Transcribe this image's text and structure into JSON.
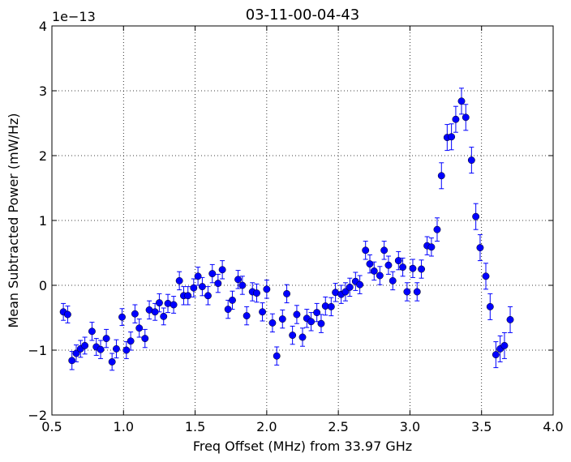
{
  "chart_data": {
    "type": "scatter",
    "title": "03-11-00-04-43",
    "xlabel": "Freq Offset (MHz) from 33.97 GHz",
    "ylabel": "Mean Subtracted Power (mW/Hz)",
    "y_offset_label": "1e−13",
    "xlim": [
      0.5,
      4.0
    ],
    "ylim": [
      -2,
      4
    ],
    "x_ticks": [
      "0.5",
      "1.0",
      "1.5",
      "2.0",
      "2.5",
      "3.0",
      "3.5",
      "4.0"
    ],
    "y_ticks": [
      "−2",
      "−1",
      "0",
      "1",
      "2",
      "3",
      "4"
    ],
    "grid": true,
    "marker_color": "#0000ff",
    "error_bar_color": "#0000ff",
    "points": [
      {
        "x": 0.58,
        "y": -0.41,
        "err": 0.13
      },
      {
        "x": 0.61,
        "y": -0.45,
        "err": 0.13
      },
      {
        "x": 0.64,
        "y": -1.16,
        "err": 0.14
      },
      {
        "x": 0.67,
        "y": -1.05,
        "err": 0.13
      },
      {
        "x": 0.7,
        "y": -0.98,
        "err": 0.13
      },
      {
        "x": 0.73,
        "y": -0.93,
        "err": 0.13
      },
      {
        "x": 0.78,
        "y": -0.71,
        "err": 0.14
      },
      {
        "x": 0.81,
        "y": -0.95,
        "err": 0.13
      },
      {
        "x": 0.84,
        "y": -0.99,
        "err": 0.14
      },
      {
        "x": 0.88,
        "y": -0.82,
        "err": 0.14
      },
      {
        "x": 0.92,
        "y": -1.18,
        "err": 0.13
      },
      {
        "x": 0.95,
        "y": -0.98,
        "err": 0.14
      },
      {
        "x": 0.99,
        "y": -0.49,
        "err": 0.13
      },
      {
        "x": 1.02,
        "y": -1.0,
        "err": 0.13
      },
      {
        "x": 1.05,
        "y": -0.86,
        "err": 0.14
      },
      {
        "x": 1.08,
        "y": -0.44,
        "err": 0.14
      },
      {
        "x": 1.11,
        "y": -0.66,
        "err": 0.14
      },
      {
        "x": 1.15,
        "y": -0.82,
        "err": 0.14
      },
      {
        "x": 1.18,
        "y": -0.38,
        "err": 0.14
      },
      {
        "x": 1.22,
        "y": -0.41,
        "err": 0.13
      },
      {
        "x": 1.25,
        "y": -0.27,
        "err": 0.14
      },
      {
        "x": 1.28,
        "y": -0.48,
        "err": 0.13
      },
      {
        "x": 1.31,
        "y": -0.28,
        "err": 0.14
      },
      {
        "x": 1.35,
        "y": -0.3,
        "err": 0.13
      },
      {
        "x": 1.39,
        "y": 0.07,
        "err": 0.14
      },
      {
        "x": 1.42,
        "y": -0.16,
        "err": 0.14
      },
      {
        "x": 1.45,
        "y": -0.16,
        "err": 0.14
      },
      {
        "x": 1.49,
        "y": -0.04,
        "err": 0.14
      },
      {
        "x": 1.52,
        "y": 0.14,
        "err": 0.14
      },
      {
        "x": 1.55,
        "y": -0.02,
        "err": 0.14
      },
      {
        "x": 1.59,
        "y": -0.16,
        "err": 0.14
      },
      {
        "x": 1.62,
        "y": 0.18,
        "err": 0.14
      },
      {
        "x": 1.66,
        "y": 0.03,
        "err": 0.14
      },
      {
        "x": 1.69,
        "y": 0.24,
        "err": 0.14
      },
      {
        "x": 1.73,
        "y": -0.37,
        "err": 0.14
      },
      {
        "x": 1.76,
        "y": -0.23,
        "err": 0.14
      },
      {
        "x": 1.8,
        "y": 0.09,
        "err": 0.14
      },
      {
        "x": 1.83,
        "y": 0.0,
        "err": 0.14
      },
      {
        "x": 1.86,
        "y": -0.47,
        "err": 0.14
      },
      {
        "x": 1.9,
        "y": -0.1,
        "err": 0.14
      },
      {
        "x": 1.93,
        "y": -0.12,
        "err": 0.14
      },
      {
        "x": 1.97,
        "y": -0.41,
        "err": 0.14
      },
      {
        "x": 2.0,
        "y": -0.06,
        "err": 0.14
      },
      {
        "x": 2.04,
        "y": -0.58,
        "err": 0.14
      },
      {
        "x": 2.07,
        "y": -1.09,
        "err": 0.14
      },
      {
        "x": 2.11,
        "y": -0.52,
        "err": 0.14
      },
      {
        "x": 2.14,
        "y": -0.13,
        "err": 0.14
      },
      {
        "x": 2.18,
        "y": -0.77,
        "err": 0.14
      },
      {
        "x": 2.21,
        "y": -0.45,
        "err": 0.14
      },
      {
        "x": 2.25,
        "y": -0.8,
        "err": 0.14
      },
      {
        "x": 2.28,
        "y": -0.51,
        "err": 0.14
      },
      {
        "x": 2.31,
        "y": -0.56,
        "err": 0.14
      },
      {
        "x": 2.35,
        "y": -0.42,
        "err": 0.14
      },
      {
        "x": 2.38,
        "y": -0.59,
        "err": 0.14
      },
      {
        "x": 2.41,
        "y": -0.32,
        "err": 0.14
      },
      {
        "x": 2.45,
        "y": -0.33,
        "err": 0.14
      },
      {
        "x": 2.48,
        "y": -0.11,
        "err": 0.14
      },
      {
        "x": 2.52,
        "y": -0.14,
        "err": 0.14
      },
      {
        "x": 2.55,
        "y": -0.1,
        "err": 0.14
      },
      {
        "x": 2.58,
        "y": -0.03,
        "err": 0.14
      },
      {
        "x": 2.62,
        "y": 0.06,
        "err": 0.14
      },
      {
        "x": 2.65,
        "y": 0.01,
        "err": 0.14
      },
      {
        "x": 2.69,
        "y": 0.54,
        "err": 0.14
      },
      {
        "x": 2.72,
        "y": 0.33,
        "err": 0.14
      },
      {
        "x": 2.75,
        "y": 0.22,
        "err": 0.14
      },
      {
        "x": 2.79,
        "y": 0.15,
        "err": 0.14
      },
      {
        "x": 2.82,
        "y": 0.54,
        "err": 0.14
      },
      {
        "x": 2.85,
        "y": 0.31,
        "err": 0.14
      },
      {
        "x": 2.88,
        "y": 0.07,
        "err": 0.14
      },
      {
        "x": 2.92,
        "y": 0.38,
        "err": 0.14
      },
      {
        "x": 2.95,
        "y": 0.28,
        "err": 0.14
      },
      {
        "x": 2.98,
        "y": -0.1,
        "err": 0.14
      },
      {
        "x": 3.02,
        "y": 0.26,
        "err": 0.14
      },
      {
        "x": 3.05,
        "y": -0.1,
        "err": 0.14
      },
      {
        "x": 3.08,
        "y": 0.25,
        "err": 0.14
      },
      {
        "x": 3.12,
        "y": 0.61,
        "err": 0.14
      },
      {
        "x": 3.15,
        "y": 0.59,
        "err": 0.14
      },
      {
        "x": 3.19,
        "y": 0.86,
        "err": 0.18
      },
      {
        "x": 3.22,
        "y": 1.69,
        "err": 0.2
      },
      {
        "x": 3.26,
        "y": 2.28,
        "err": 0.2
      },
      {
        "x": 3.29,
        "y": 2.29,
        "err": 0.2
      },
      {
        "x": 3.32,
        "y": 2.56,
        "err": 0.2
      },
      {
        "x": 3.36,
        "y": 2.84,
        "err": 0.2
      },
      {
        "x": 3.39,
        "y": 2.59,
        "err": 0.2
      },
      {
        "x": 3.43,
        "y": 1.93,
        "err": 0.2
      },
      {
        "x": 3.46,
        "y": 1.06,
        "err": 0.2
      },
      {
        "x": 3.49,
        "y": 0.58,
        "err": 0.2
      },
      {
        "x": 3.53,
        "y": 0.14,
        "err": 0.2
      },
      {
        "x": 3.56,
        "y": -0.33,
        "err": 0.2
      },
      {
        "x": 3.6,
        "y": -1.07,
        "err": 0.2
      },
      {
        "x": 3.63,
        "y": -0.98,
        "err": 0.2
      },
      {
        "x": 3.66,
        "y": -0.93,
        "err": 0.2
      },
      {
        "x": 3.7,
        "y": -0.53,
        "err": 0.2
      }
    ]
  }
}
